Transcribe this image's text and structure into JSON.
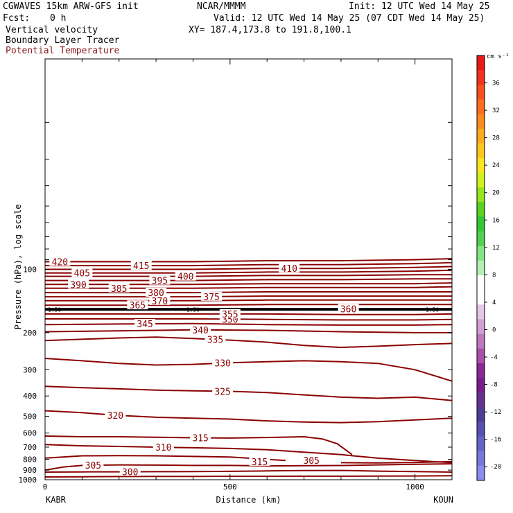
{
  "header": {
    "model": "CGWAVES 15km ARW-GFS init",
    "org": "NCAR/MMMM",
    "init": "Init: 12 UTC Wed 14 May 25",
    "fcst_label": "Fcst:",
    "fcst_value": "0 h",
    "valid": "Valid: 12 UTC Wed 14 May 25 (07 CDT Wed 14 May 25)",
    "xy": "XY= 187.4,173.8 to 191.8,100.1",
    "field1": "Vertical velocity",
    "field2": "Boundary Layer Tracer",
    "field3": "Potential Temperature"
  },
  "colors": {
    "contour": "#8b0000",
    "pv_line": "#000000"
  },
  "chart_data": {
    "type": "line",
    "title": "",
    "xlabel": "Distance (km)",
    "ylabel": "Pressure (hPa), log scale",
    "y_scale": "log",
    "xlim": [
      0,
      1100
    ],
    "ylim": [
      1000,
      10
    ],
    "xticks": [
      0,
      500,
      1000
    ],
    "yticks": [
      100,
      200,
      300,
      400,
      500,
      600,
      700,
      800,
      900,
      1000
    ],
    "left_station": "KABR",
    "right_station": "KOUN",
    "thick_line_label": "1.50",
    "colorbar": {
      "units": "cm s⁻¹",
      "ticks": [
        36,
        32,
        28,
        24,
        20,
        16,
        12,
        8,
        4,
        0,
        -4,
        -8,
        -12,
        -16,
        -20
      ],
      "colors": [
        "#e8191a",
        "#f0321e",
        "#f5501e",
        "#fa6e1e",
        "#fa8c1e",
        "#fcaa1e",
        "#fcc81e",
        "#fae61e",
        "#d2f01e",
        "#96e61e",
        "#5ad21e",
        "#32c832",
        "#50d250",
        "#82e682",
        "#b4f0b4",
        "#ffffff",
        "#ffffff",
        "#e6c8e6",
        "#d2a0d2",
        "#be78be",
        "#aa50aa",
        "#8c2896",
        "#781e8c",
        "#64328c",
        "#503c96",
        "#5a50b4",
        "#6464c8",
        "#7878dc",
        "#8c8cf0"
      ]
    },
    "series": [
      {
        "values": [
          [
            0,
            970
          ],
          [
            100,
            968
          ],
          [
            200,
            966
          ],
          [
            300,
            965
          ],
          [
            400,
            964
          ],
          [
            500,
            963
          ],
          [
            600,
            963
          ],
          [
            700,
            962
          ],
          [
            800,
            962
          ],
          [
            900,
            961
          ],
          [
            1000,
            960
          ],
          [
            1100,
            958
          ]
        ]
      },
      {
        "values": [
          [
            0,
            920
          ],
          [
            100,
            918
          ],
          [
            200,
            917
          ],
          [
            300,
            916
          ],
          [
            400,
            915
          ],
          [
            500,
            912
          ],
          [
            600,
            908
          ],
          [
            700,
            905
          ],
          [
            800,
            903
          ],
          [
            900,
            910
          ],
          [
            1000,
            915
          ],
          [
            1100,
            920
          ]
        ],
        "label": "300",
        "label_x": 230
      },
      {
        "values": [
          [
            0,
            900
          ],
          [
            50,
            870
          ],
          [
            100,
            855
          ],
          [
            200,
            850
          ],
          [
            300,
            852
          ],
          [
            400,
            855
          ],
          [
            500,
            855
          ],
          [
            600,
            860
          ],
          [
            700,
            858
          ],
          [
            800,
            856
          ],
          [
            900,
            850
          ],
          [
            1000,
            845
          ],
          [
            1100,
            840
          ]
        ],
        "label": "305",
        "label_x": 130
      },
      {
        "values": [
          [
            0,
            790
          ],
          [
            100,
            770
          ],
          [
            200,
            768
          ],
          [
            300,
            770
          ],
          [
            400,
            775
          ],
          [
            500,
            780
          ],
          [
            550,
            790
          ],
          [
            600,
            800
          ],
          [
            650,
            810
          ]
        ],
        "label": "305",
        "label_x": 720
      },
      {
        "values": [
          [
            0,
            680
          ],
          [
            100,
            690
          ],
          [
            200,
            695
          ],
          [
            300,
            700
          ],
          [
            400,
            705
          ],
          [
            500,
            710
          ],
          [
            600,
            720
          ],
          [
            700,
            740
          ],
          [
            800,
            760
          ],
          [
            900,
            790
          ],
          [
            1000,
            810
          ],
          [
            1100,
            830
          ]
        ],
        "label": "310",
        "label_x": 320
      },
      {
        "values": [
          [
            0,
            620
          ],
          [
            100,
            625
          ],
          [
            200,
            625
          ],
          [
            300,
            628
          ],
          [
            400,
            632
          ],
          [
            500,
            634
          ],
          [
            600,
            630
          ],
          [
            700,
            625
          ],
          [
            750,
            640
          ],
          [
            790,
            675
          ],
          [
            830,
            760
          ]
        ],
        "label": "315",
        "label_x": 420
      },
      {
        "values": [
          [
            800,
            830
          ],
          [
            900,
            832
          ],
          [
            1000,
            828
          ],
          [
            1100,
            820
          ]
        ],
        "label": "315",
        "label_x": 580
      },
      {
        "values": [
          [
            0,
            470
          ],
          [
            100,
            480
          ],
          [
            200,
            495
          ],
          [
            300,
            505
          ],
          [
            400,
            510
          ],
          [
            500,
            515
          ],
          [
            600,
            525
          ],
          [
            700,
            532
          ],
          [
            800,
            535
          ],
          [
            900,
            530
          ],
          [
            1000,
            520
          ],
          [
            1100,
            510
          ]
        ],
        "label": "320",
        "label_x": 190
      },
      {
        "values": [
          [
            0,
            360
          ],
          [
            100,
            365
          ],
          [
            200,
            370
          ],
          [
            300,
            375
          ],
          [
            400,
            378
          ],
          [
            500,
            380
          ],
          [
            600,
            385
          ],
          [
            700,
            395
          ],
          [
            800,
            405
          ],
          [
            900,
            410
          ],
          [
            1000,
            405
          ],
          [
            1100,
            420
          ]
        ],
        "label": "325",
        "label_x": 480
      },
      {
        "values": [
          [
            0,
            265
          ],
          [
            100,
            272
          ],
          [
            200,
            280
          ],
          [
            300,
            285
          ],
          [
            400,
            283
          ],
          [
            500,
            278
          ],
          [
            600,
            275
          ],
          [
            700,
            272
          ],
          [
            800,
            275
          ],
          [
            900,
            280
          ],
          [
            1000,
            300
          ],
          [
            1100,
            340
          ]
        ],
        "label": "330",
        "label_x": 480
      },
      {
        "values": [
          [
            0,
            218
          ],
          [
            100,
            215
          ],
          [
            200,
            212
          ],
          [
            300,
            210
          ],
          [
            400,
            213
          ],
          [
            500,
            217
          ],
          [
            600,
            222
          ],
          [
            700,
            230
          ],
          [
            800,
            235
          ],
          [
            900,
            232
          ],
          [
            1000,
            228
          ],
          [
            1100,
            225
          ]
        ],
        "label": "335",
        "label_x": 460
      },
      {
        "values": [
          [
            0,
            198
          ],
          [
            200,
            196
          ],
          [
            400,
            194
          ],
          [
            600,
            195
          ],
          [
            800,
            198
          ],
          [
            1000,
            200
          ],
          [
            1100,
            200
          ]
        ],
        "label": "340",
        "label_x": 420
      },
      {
        "values": [
          [
            0,
            183
          ],
          [
            200,
            182
          ],
          [
            400,
            181
          ],
          [
            600,
            183
          ],
          [
            800,
            184
          ],
          [
            1000,
            184
          ],
          [
            1100,
            183
          ]
        ],
        "label": "345",
        "label_x": 270
      },
      {
        "values": [
          [
            0,
            172
          ],
          [
            200,
            172
          ],
          [
            400,
            172
          ],
          [
            600,
            173
          ],
          [
            800,
            174
          ],
          [
            1000,
            174
          ],
          [
            1100,
            173
          ]
        ],
        "label": "350",
        "label_x": 500
      },
      {
        "values": [
          [
            0,
            163
          ],
          [
            200,
            163
          ],
          [
            400,
            163
          ],
          [
            600,
            163
          ],
          [
            800,
            164
          ],
          [
            1000,
            164
          ],
          [
            1100,
            163
          ]
        ],
        "label": "355",
        "label_x": 500
      },
      {
        "values": [
          [
            0,
            154
          ],
          [
            200,
            154
          ],
          [
            400,
            154
          ],
          [
            600,
            154
          ],
          [
            800,
            154
          ],
          [
            1000,
            154
          ],
          [
            1100,
            154
          ]
        ],
        "label": "360",
        "label_x": 820
      },
      {
        "values": [
          [
            0,
            148
          ],
          [
            200,
            148
          ],
          [
            400,
            148
          ],
          [
            600,
            147
          ],
          [
            800,
            147
          ],
          [
            1000,
            147
          ],
          [
            1100,
            147
          ]
        ],
        "label": "365",
        "label_x": 250
      },
      {
        "values": [
          [
            0,
            141
          ],
          [
            200,
            141
          ],
          [
            400,
            141
          ],
          [
            600,
            140
          ],
          [
            800,
            140
          ],
          [
            1000,
            140
          ],
          [
            1100,
            140
          ]
        ],
        "label": "370",
        "label_x": 310
      },
      {
        "values": [
          [
            0,
            135
          ],
          [
            200,
            135
          ],
          [
            400,
            135
          ],
          [
            600,
            134
          ],
          [
            800,
            134
          ],
          [
            1000,
            134
          ],
          [
            1100,
            134
          ]
        ],
        "label": "375",
        "label_x": 450
      },
      {
        "values": [
          [
            0,
            129
          ],
          [
            200,
            129
          ],
          [
            400,
            129
          ],
          [
            600,
            128
          ],
          [
            800,
            128
          ],
          [
            1000,
            128
          ],
          [
            1100,
            128
          ]
        ],
        "label": "380",
        "label_x": 300
      },
      {
        "values": [
          [
            0,
            123
          ],
          [
            200,
            123
          ],
          [
            400,
            123
          ],
          [
            600,
            122
          ],
          [
            800,
            122
          ],
          [
            1000,
            122
          ],
          [
            1100,
            121
          ]
        ],
        "label": "385",
        "label_x": 200
      },
      {
        "values": [
          [
            0,
            118
          ],
          [
            200,
            118
          ],
          [
            400,
            118
          ],
          [
            600,
            117
          ],
          [
            800,
            117
          ],
          [
            1000,
            117
          ],
          [
            1100,
            116
          ]
        ],
        "label": "390",
        "label_x": 90
      },
      {
        "values": [
          [
            0,
            113
          ],
          [
            200,
            113
          ],
          [
            400,
            113
          ],
          [
            600,
            112
          ],
          [
            800,
            112
          ],
          [
            1000,
            111
          ],
          [
            1100,
            111
          ]
        ],
        "label": "395",
        "label_x": 310
      },
      {
        "values": [
          [
            0,
            108
          ],
          [
            200,
            108
          ],
          [
            400,
            108
          ],
          [
            600,
            107
          ],
          [
            800,
            107
          ],
          [
            1000,
            106
          ],
          [
            1100,
            106
          ]
        ],
        "label": "400",
        "label_x": 380
      },
      {
        "values": [
          [
            0,
            104
          ],
          [
            200,
            104
          ],
          [
            400,
            104
          ],
          [
            600,
            103
          ],
          [
            800,
            103
          ],
          [
            1000,
            102
          ],
          [
            1100,
            101
          ]
        ],
        "label": "405",
        "label_x": 100
      },
      {
        "values": [
          [
            0,
            100
          ],
          [
            200,
            100
          ],
          [
            400,
            100
          ],
          [
            600,
            99
          ],
          [
            800,
            99
          ],
          [
            1000,
            98
          ],
          [
            1100,
            97
          ]
        ],
        "label": "410",
        "label_x": 660
      },
      {
        "values": [
          [
            0,
            96
          ],
          [
            200,
            96
          ],
          [
            400,
            96
          ],
          [
            600,
            95
          ],
          [
            800,
            95
          ],
          [
            1000,
            94
          ],
          [
            1100,
            93
          ]
        ],
        "label": "415",
        "label_x": 260
      },
      {
        "values": [
          [
            0,
            92
          ],
          [
            200,
            92
          ],
          [
            400,
            92
          ],
          [
            600,
            91
          ],
          [
            800,
            91
          ],
          [
            1000,
            90
          ],
          [
            1100,
            89
          ]
        ],
        "label": "420",
        "label_x": 40
      }
    ],
    "pv_line": {
      "values": [
        [
          0,
          155
        ],
        [
          1100,
          155
        ]
      ]
    }
  }
}
